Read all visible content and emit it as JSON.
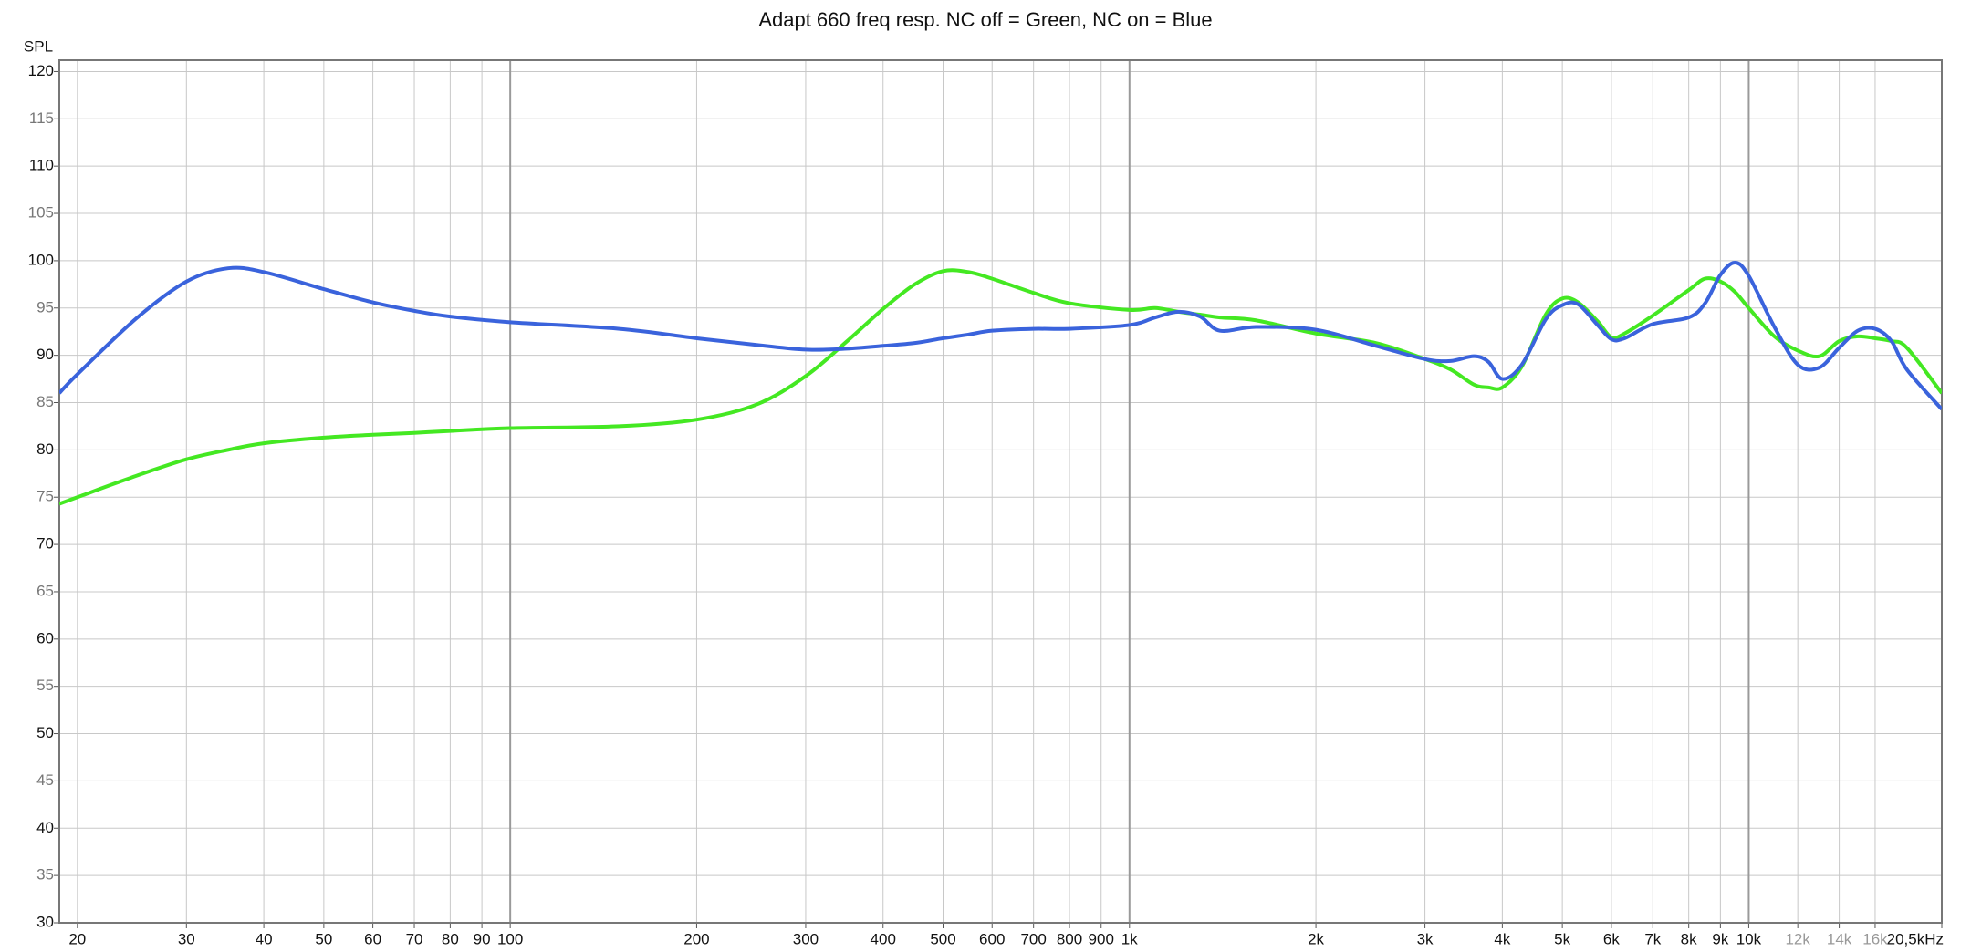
{
  "chart_data": {
    "type": "line",
    "title": "Adapt 660 freq resp. NC off = Green, NC on = Blue",
    "y_label": "SPL",
    "log_x": true,
    "grid": true,
    "xlim": [
      18.7,
      20500
    ],
    "ylim": [
      30,
      121.2
    ],
    "xticks": [
      20,
      30,
      40,
      50,
      60,
      70,
      80,
      90,
      100,
      200,
      300,
      400,
      500,
      600,
      700,
      800,
      900,
      {
        "value": 1000,
        "label": "1k"
      },
      {
        "value": 2000,
        "label": "2k"
      },
      {
        "value": 3000,
        "label": "3k"
      },
      {
        "value": 4000,
        "label": "4k"
      },
      {
        "value": 5000,
        "label": "5k"
      },
      {
        "value": 6000,
        "label": "6k"
      },
      {
        "value": 7000,
        "label": "7k"
      },
      {
        "value": 8000,
        "label": "8k"
      },
      {
        "value": 9000,
        "label": "9k"
      },
      {
        "value": 10000,
        "label": "10k"
      },
      {
        "value": 12000,
        "label": "12k"
      },
      {
        "value": 14000,
        "label": "14k"
      },
      {
        "value": 16000,
        "label": "16k"
      },
      {
        "value": 20500,
        "label": "20,5kHz"
      }
    ],
    "yticks": [
      30,
      35,
      40,
      45,
      50,
      55,
      60,
      65,
      70,
      75,
      80,
      85,
      90,
      95,
      100,
      105,
      110,
      115,
      120
    ],
    "x": [
      18.7,
      20,
      25,
      30,
      35,
      40,
      50,
      60,
      70,
      80,
      100,
      150,
      200,
      250,
      300,
      350,
      400,
      450,
      500,
      550,
      600,
      700,
      800,
      1000,
      1100,
      1200,
      1300,
      1400,
      1600,
      2000,
      2500,
      3000,
      3300,
      3600,
      3800,
      4000,
      4300,
      4700,
      5000,
      5300,
      5700,
      6000,
      6300,
      7000,
      8000,
      8500,
      9000,
      9500,
      10000,
      11000,
      12000,
      13000,
      14000,
      15000,
      16000,
      17000,
      18000,
      20500
    ],
    "series": [
      {
        "color": "#44e822",
        "values": [
          74.3,
          75,
          77.3,
          79,
          80,
          80.7,
          81.3,
          81.6,
          81.8,
          82,
          82.3,
          82.5,
          83.2,
          84.8,
          87.8,
          91.5,
          94.9,
          97.5,
          98.9,
          98.8,
          98.1,
          96.6,
          95.5,
          94.8,
          95,
          94.6,
          94.3,
          94,
          93.7,
          92.3,
          91.3,
          89.6,
          88.5,
          86.9,
          86.6,
          86.6,
          88.8,
          94.3,
          96,
          95.6,
          93.6,
          91.9,
          92.3,
          94.2,
          96.9,
          98.1,
          97.8,
          96.7,
          95,
          92,
          90.5,
          89.9,
          91.5,
          92,
          91.8,
          91.5,
          90.8,
          86
        ]
      },
      {
        "color": "#3a63dc",
        "values": [
          86,
          88,
          94,
          97.8,
          99.2,
          98.8,
          97,
          95.6,
          94.7,
          94.1,
          93.5,
          92.8,
          91.8,
          91.1,
          90.6,
          90.7,
          91,
          91.3,
          91.8,
          92.2,
          92.6,
          92.8,
          92.8,
          93.2,
          94,
          94.6,
          94.1,
          92.6,
          93,
          92.7,
          91,
          89.6,
          89.4,
          89.9,
          89.3,
          87.5,
          89,
          93.8,
          95.3,
          95.4,
          93.2,
          91.7,
          91.8,
          93.3,
          94,
          95.5,
          98.5,
          99.8,
          98.4,
          93,
          89,
          88.7,
          90.8,
          92.6,
          92.8,
          91.5,
          88.5,
          84.3
        ]
      }
    ]
  }
}
